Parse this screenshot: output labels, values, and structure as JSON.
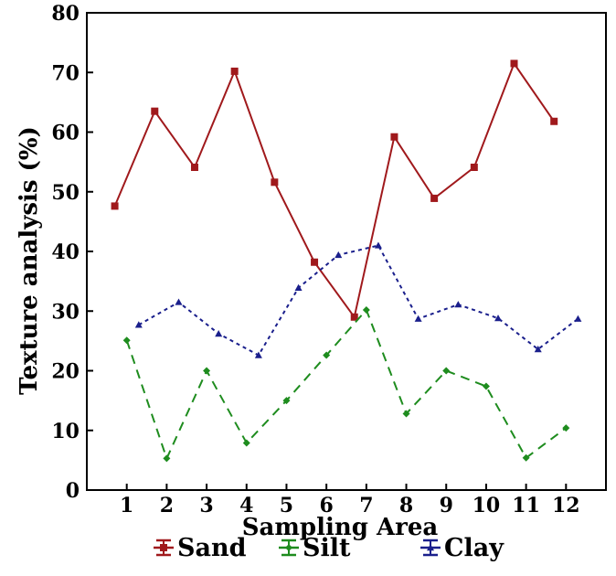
{
  "chart_data": {
    "type": "line",
    "xlabel": "Sampling Area",
    "ylabel": "Texture analysis (%)",
    "xlim": [
      0,
      13
    ],
    "ylim": [
      0,
      80
    ],
    "x_ticks": [
      "1",
      "2",
      "3",
      "4",
      "5",
      "6",
      "7",
      "8",
      "9",
      "10",
      "11",
      "12"
    ],
    "y_ticks": [
      "0",
      "10",
      "20",
      "30",
      "40",
      "50",
      "60",
      "70",
      "80"
    ],
    "grid": false,
    "legend_position": "bottom",
    "series": [
      {
        "name": "Sand",
        "color": "#a0191c",
        "line_style": "solid",
        "marker": "square",
        "x": [
          0.7,
          1.7,
          2.7,
          3.7,
          4.7,
          5.7,
          6.7,
          7.7,
          8.7,
          9.7,
          10.7,
          11.7
        ],
        "values": [
          47.6,
          63.5,
          54.1,
          70.2,
          51.6,
          38.2,
          29.0,
          59.2,
          48.9,
          54.1,
          71.5,
          61.8
        ]
      },
      {
        "name": "Silt",
        "color": "#1e8c1e",
        "line_style": "dashed",
        "marker": "diamond",
        "x": [
          1,
          2,
          3,
          4,
          5,
          6,
          7,
          8,
          9,
          10,
          11,
          12
        ],
        "values": [
          25.1,
          5.3,
          20.0,
          7.9,
          15.0,
          22.6,
          30.2,
          12.8,
          20.0,
          17.4,
          5.4,
          10.4
        ]
      },
      {
        "name": "Clay",
        "color": "#1a1f8c",
        "line_style": "dotted",
        "marker": "triangle",
        "x": [
          1.3,
          2.3,
          3.3,
          4.3,
          5.3,
          6.3,
          7.3,
          8.3,
          9.3,
          10.3,
          11.3,
          12.3
        ],
        "values": [
          27.7,
          31.5,
          26.2,
          22.6,
          33.9,
          39.4,
          41.0,
          28.7,
          31.1,
          28.8,
          23.6,
          28.7
        ]
      }
    ]
  }
}
